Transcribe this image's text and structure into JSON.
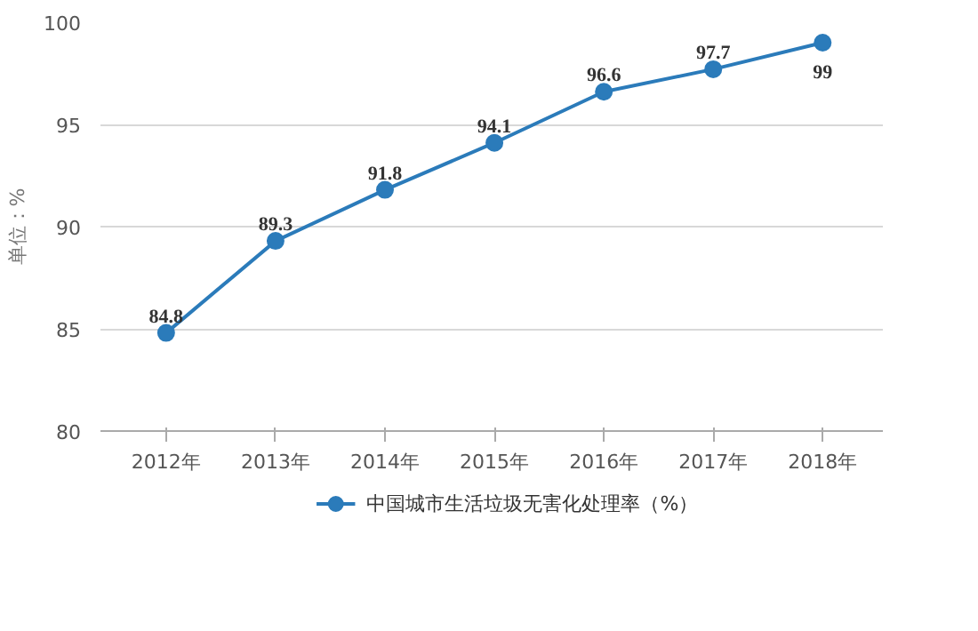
{
  "chart_data": {
    "type": "line",
    "ylabel": "单位：%",
    "categories": [
      "2012年",
      "2013年",
      "2014年",
      "2015年",
      "2016年",
      "2017年",
      "2018年"
    ],
    "series": [
      {
        "name": "中国城市生活垃圾无害化处理率（%）",
        "color": "#2b7bba",
        "values": [
          84.8,
          89.3,
          91.8,
          94.1,
          96.6,
          97.7,
          99
        ]
      }
    ],
    "ylim": [
      80,
      100
    ],
    "yticks": [
      80,
      85,
      90,
      95,
      100
    ],
    "grid": "y",
    "legend": "bottom",
    "marker": "circle",
    "line_style": "solid",
    "data_labels": true
  }
}
